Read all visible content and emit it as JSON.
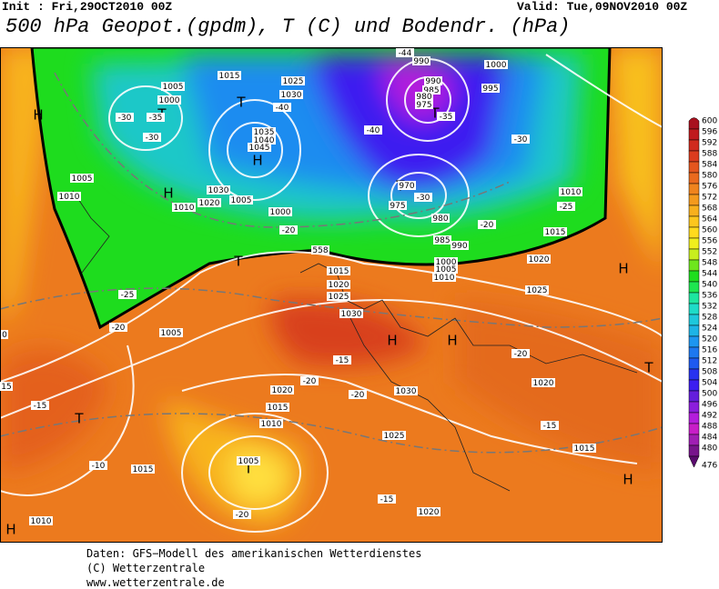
{
  "header": {
    "init": "Init : Fri,29OCT2010 00Z",
    "valid": "Valid: Tue,09NOV2010 00Z",
    "title": "500 hPa Geopot.(gpdm), T (C) und Bodendr. (hPa)"
  },
  "colorbar": {
    "ticks": [
      600,
      596,
      592,
      588,
      584,
      580,
      576,
      572,
      568,
      564,
      560,
      556,
      552,
      548,
      544,
      540,
      536,
      532,
      528,
      524,
      520,
      516,
      512,
      508,
      504,
      500,
      496,
      492,
      488,
      484,
      480,
      476
    ],
    "colors": [
      "#a8101e",
      "#c01a1e",
      "#d02a1e",
      "#dc3c1e",
      "#e4561e",
      "#ea6a1e",
      "#f0841e",
      "#f49a1e",
      "#f8b01e",
      "#fcc61e",
      "#ffda1e",
      "#f0ee1e",
      "#c8ee1e",
      "#6ee61e",
      "#1ede1e",
      "#1ee650",
      "#1ee6a0",
      "#1edcc8",
      "#1ec8dc",
      "#1eb4e6",
      "#1e96f0",
      "#1e78f0",
      "#1e5af0",
      "#2832f0",
      "#3c1ef0",
      "#641edc",
      "#8c1edc",
      "#b41edc",
      "#c81ec8",
      "#a01eb4",
      "#78148c",
      "#5a0a6e"
    ]
  },
  "map_labels": [
    "H",
    "T",
    "H",
    "T",
    "H",
    "T",
    "H",
    "H",
    "H",
    "T",
    "T",
    "T",
    "H",
    "H",
    "T",
    "T",
    "1015",
    "1005",
    "1000",
    "-35",
    "-30",
    "-30",
    "1005",
    "1010",
    "1035",
    "1040",
    "1045",
    "1030",
    "1020",
    "1010",
    "1005",
    "-40",
    "1030",
    "1025",
    "-40",
    "990",
    "990",
    "985",
    "980",
    "975",
    "1000",
    "995",
    "-30",
    "-35",
    "970",
    "-30",
    "975",
    "980",
    "-20",
    "1010",
    "-25",
    "1015",
    "1020",
    "985",
    "990",
    "1000",
    "1005",
    "1010",
    "1000",
    "-20",
    "1015",
    "1020",
    "1025",
    "1030",
    "1025",
    "-20",
    "-25",
    "-20",
    "1005",
    "-15",
    "-20",
    "1020",
    "1015",
    "-20",
    "1030",
    "1020",
    "1010",
    "1025",
    "-15",
    "1015",
    "1005",
    "-10",
    "1015",
    "-20",
    "1010",
    "-15",
    "1020",
    "-15",
    "0",
    "15",
    "-44",
    "558"
  ],
  "footer": [
    "Daten: GFS−Modell des amerikanischen Wetterdienstes",
    "(C) Wetterzentrale",
    "www.wetterzentrale.de"
  ]
}
